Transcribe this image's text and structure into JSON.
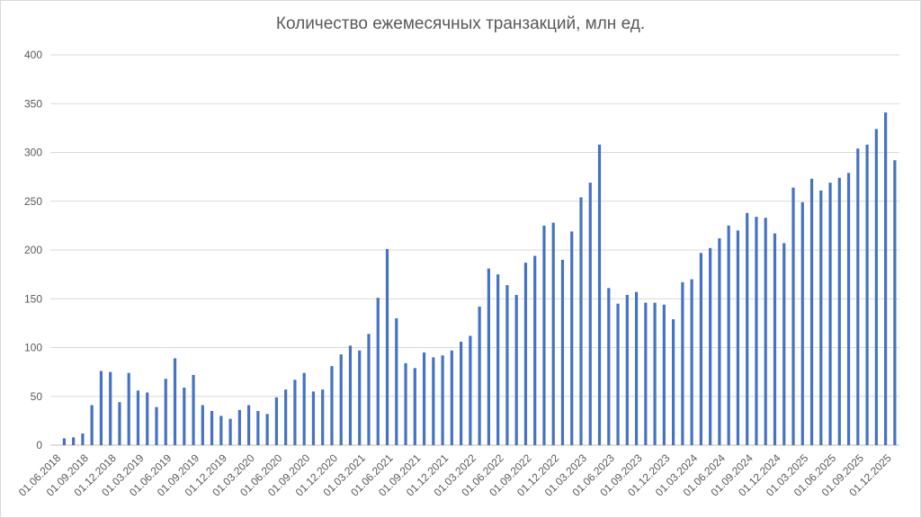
{
  "chart_data": {
    "type": "bar",
    "title": "Количество ежемесячных транзакций, млн ед.",
    "xlabel": "",
    "ylabel": "",
    "ylim": [
      0,
      400
    ],
    "yticks": [
      0,
      50,
      100,
      150,
      200,
      250,
      300,
      350,
      400
    ],
    "grid": "horizontal",
    "legend": "none",
    "bar_color": "#4472c4",
    "categories_start": "01.06.2018",
    "x_tick_labels": [
      "01.06.2018",
      "01.09.2018",
      "01.12.2018",
      "01.03.2019",
      "01.06.2019",
      "01.09.2019",
      "01.12.2019",
      "01.03.2020",
      "01.06.2020",
      "01.09.2020",
      "01.12.2020",
      "01.03.2021",
      "01.06.2021",
      "01.09.2021",
      "01.12.2021",
      "01.03.2022",
      "01.06.2022",
      "01.09.2022",
      "01.12.2022",
      "01.03.2023",
      "01.06.2023",
      "01.09.2023",
      "01.12.2023",
      "01.03.2024",
      "01.06.2024",
      "01.09.2024",
      "01.12.2024",
      "01.03.2025",
      "01.06.2025",
      "01.09.2025",
      "01.12.2025"
    ],
    "x_tick_indices": [
      0,
      3,
      6,
      9,
      12,
      15,
      18,
      21,
      24,
      27,
      30,
      33,
      36,
      39,
      42,
      45,
      48,
      51,
      54,
      57,
      60,
      63,
      66,
      69,
      72,
      75,
      78,
      81,
      84,
      87,
      90
    ],
    "values": [
      0,
      7,
      8,
      12,
      41,
      76,
      75,
      44,
      74,
      56,
      54,
      39,
      68,
      89,
      59,
      72,
      41,
      35,
      30,
      27,
      36,
      41,
      35,
      32,
      49,
      57,
      67,
      74,
      55,
      57,
      81,
      93,
      102,
      97,
      114,
      151,
      201,
      130,
      84,
      79,
      95,
      90,
      92,
      97,
      106,
      112,
      142,
      181,
      175,
      164,
      154,
      187,
      194,
      225,
      228,
      190,
      219,
      254,
      269,
      308,
      161,
      145,
      154,
      157,
      146,
      146,
      144,
      129,
      167,
      170,
      197,
      202,
      212,
      225,
      220,
      238,
      234,
      233,
      217,
      207,
      264,
      249,
      273,
      261,
      269,
      274,
      279,
      304,
      308,
      324,
      341,
      292
    ]
  }
}
